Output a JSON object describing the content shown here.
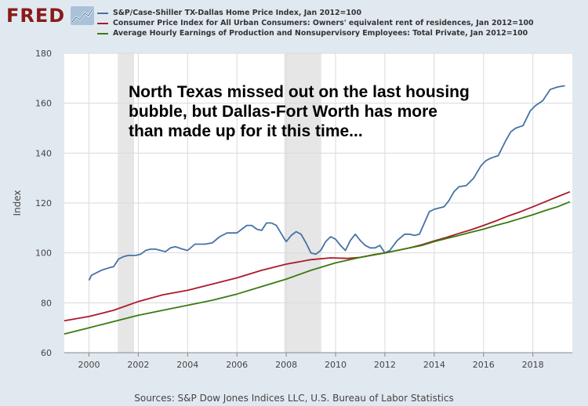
{
  "logo": {
    "text": "FRED"
  },
  "legend": [
    {
      "label": "S&P/Case-Shiller TX-Dallas Home Price Index, Jan 2012=100",
      "color": "#4572a7"
    },
    {
      "label": "Consumer Price Index for All Urban Consumers: Owners' equivalent rent of residences, Jan 2012=100",
      "color": "#aa1a2a"
    },
    {
      "label": "Average Hourly Earnings of Production and Nonsupervisory Employees: Total Private, Jan 2012=100",
      "color": "#3a7a10"
    }
  ],
  "source": "Sources: S&P Dow Jones Indices LLC, U.S. Bureau of Labor Statistics",
  "chart_data": {
    "type": "line",
    "ylabel": "Index",
    "xlim": [
      1999.0,
      2019.6
    ],
    "ylim": [
      60,
      180
    ],
    "yticks": [
      60,
      80,
      100,
      120,
      140,
      160,
      180
    ],
    "xticks": [
      "2000",
      "2002",
      "2004",
      "2006",
      "2008",
      "2010",
      "2012",
      "2014",
      "2016",
      "2018"
    ],
    "grid": true,
    "recessions": [
      [
        2001.17,
        2001.83
      ],
      [
        2007.92,
        2009.42
      ]
    ],
    "annotation": "North Texas missed out on the last housing bubble, but Dallas-Fort Worth has more than made up for it this time...",
    "series": [
      {
        "name": "S&P/Case-Shiller TX-Dallas Home Price Index, Jan 2012=100",
        "color": "#4572a7",
        "x": [
          2000.0,
          2000.1,
          2000.3,
          2000.5,
          2000.8,
          2001.0,
          2001.2,
          2001.4,
          2001.6,
          2001.9,
          2002.1,
          2002.3,
          2002.5,
          2002.7,
          2002.9,
          2003.1,
          2003.3,
          2003.5,
          2003.8,
          2004.0,
          2004.3,
          2004.5,
          2004.7,
          2005.0,
          2005.3,
          2005.6,
          2005.8,
          2006.0,
          2006.2,
          2006.4,
          2006.6,
          2006.8,
          2007.0,
          2007.2,
          2007.4,
          2007.6,
          2007.9,
          2008.0,
          2008.2,
          2008.4,
          2008.6,
          2008.8,
          2009.0,
          2009.2,
          2009.4,
          2009.6,
          2009.8,
          2010.0,
          2010.2,
          2010.4,
          2010.6,
          2010.8,
          2011.0,
          2011.2,
          2011.4,
          2011.6,
          2011.8,
          2012.0,
          2012.2,
          2012.5,
          2012.8,
          2013.0,
          2013.2,
          2013.4,
          2013.6,
          2013.8,
          2014.0,
          2014.2,
          2014.4,
          2014.6,
          2014.8,
          2015.0,
          2015.3,
          2015.6,
          2015.9,
          2016.1,
          2016.3,
          2016.6,
          2016.9,
          2017.1,
          2017.3,
          2017.6,
          2017.9,
          2018.1,
          2018.4,
          2018.7,
          2019.0,
          2019.3
        ],
        "y": [
          89,
          91,
          92,
          93,
          94,
          94.5,
          97.5,
          98.5,
          99,
          99,
          99.5,
          101,
          101.5,
          101.5,
          101,
          100.5,
          102,
          102.5,
          101.5,
          101,
          103.5,
          103.5,
          103.5,
          104,
          106.5,
          108,
          108,
          108,
          109.5,
          111,
          111,
          109.5,
          109,
          112,
          112,
          111,
          106,
          104.5,
          107,
          108.5,
          107.5,
          104,
          100,
          99.5,
          101,
          104.5,
          106.5,
          105.5,
          103,
          101,
          105,
          107.5,
          105,
          103,
          102,
          102,
          103,
          100,
          101,
          105,
          107.5,
          107.5,
          107,
          107.5,
          112,
          116.5,
          117.5,
          118,
          118.5,
          121,
          124.5,
          126.5,
          127,
          130,
          135,
          137,
          138,
          139,
          145,
          148.5,
          150,
          151,
          157,
          159,
          161,
          165.5,
          166.5,
          167
        ]
      },
      {
        "name": "Consumer Price Index for All Urban Consumers: Owners' equivalent rent of residences, Jan 2012=100",
        "color": "#aa1a2a",
        "x": [
          1999.0,
          2000.0,
          2001.0,
          2002.0,
          2003.0,
          2004.0,
          2005.0,
          2006.0,
          2007.0,
          2008.0,
          2009.0,
          2009.8,
          2010.5,
          2011.0,
          2011.5,
          2012.0,
          2012.5,
          2013.0,
          2013.5,
          2014.0,
          2014.5,
          2015.0,
          2015.5,
          2016.0,
          2016.5,
          2017.0,
          2017.5,
          2018.0,
          2018.5,
          2019.0,
          2019.5
        ],
        "y": [
          72.8,
          74.5,
          77,
          80.5,
          83.2,
          85,
          87.5,
          90,
          93,
          95.5,
          97.3,
          98,
          97.8,
          98.2,
          99.2,
          100,
          101,
          102,
          103.3,
          104.8,
          106.2,
          107.8,
          109.3,
          111,
          112.8,
          114.8,
          116.5,
          118.5,
          120.5,
          122.5,
          124.5
        ]
      },
      {
        "name": "Average Hourly Earnings of Production and Nonsupervisory Employees: Total Private, Jan 2012=100",
        "color": "#3a7a10",
        "x": [
          1999.0,
          2000.0,
          2001.0,
          2002.0,
          2003.0,
          2004.0,
          2005.0,
          2006.0,
          2007.0,
          2008.0,
          2009.0,
          2010.0,
          2011.0,
          2012.0,
          2012.5,
          2013.0,
          2013.5,
          2014.0,
          2014.5,
          2015.0,
          2015.5,
          2016.0,
          2016.5,
          2017.0,
          2017.5,
          2018.0,
          2018.5,
          2019.0,
          2019.5
        ],
        "y": [
          67.5,
          70,
          72.5,
          75,
          77,
          79,
          81,
          83.5,
          86.5,
          89.5,
          93,
          96,
          98.2,
          100,
          101,
          102,
          103,
          104.5,
          105.8,
          107,
          108.3,
          109.5,
          111,
          112.3,
          113.8,
          115.3,
          117,
          118.5,
          120.5
        ]
      }
    ]
  }
}
